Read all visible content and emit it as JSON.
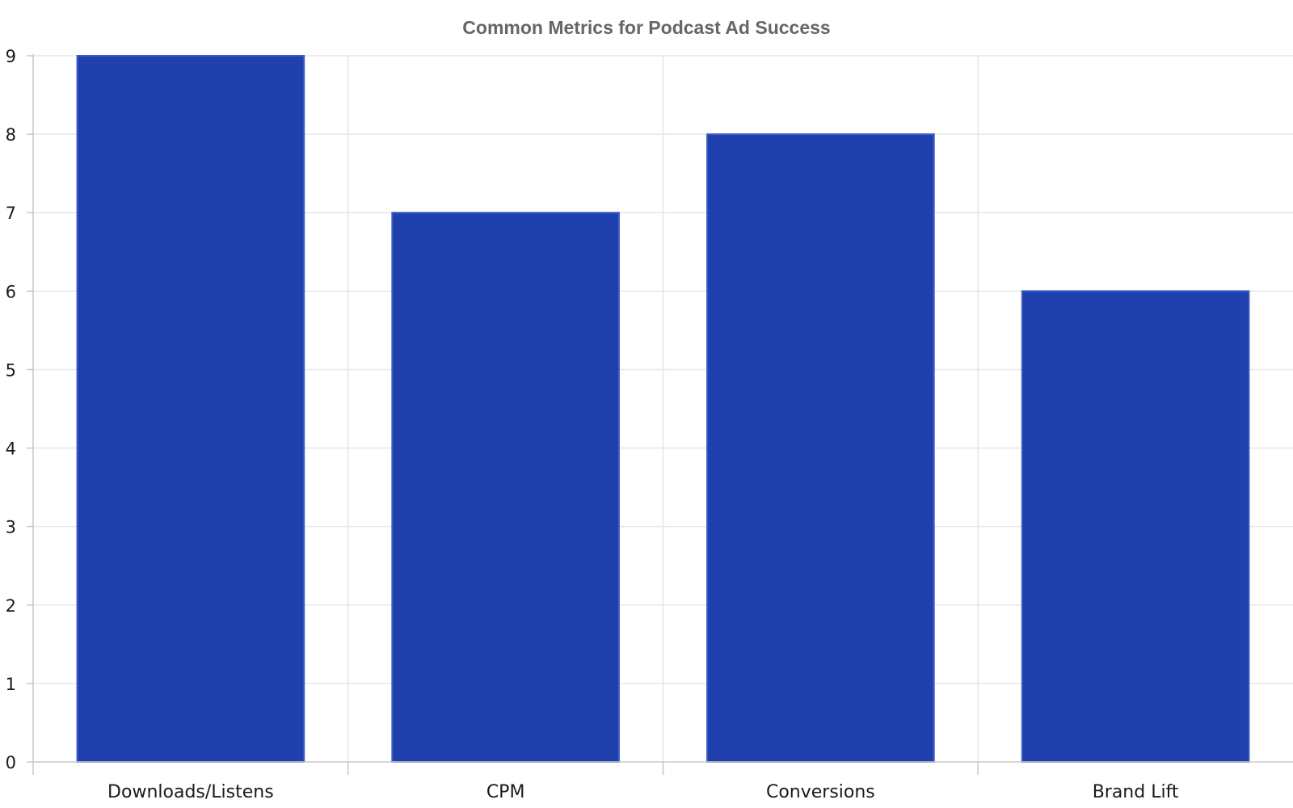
{
  "chart_data": {
    "type": "bar",
    "title": "Common Metrics for Podcast Ad Success",
    "xlabel": "",
    "ylabel": "",
    "categories": [
      "Downloads/Listens",
      "CPM",
      "Conversions",
      "Brand Lift"
    ],
    "values": [
      9,
      7,
      8,
      6
    ],
    "ylim": [
      0,
      9
    ],
    "yticks": [
      "0",
      "1",
      "2",
      "3",
      "4",
      "5",
      "6",
      "7",
      "8",
      "9"
    ],
    "grid": true,
    "legend": "none",
    "colors": {
      "bar_fill": "#1f40ad",
      "bar_edge": "#3a5cc8",
      "grid": "#e6e6e6",
      "axis": "#c8c8c8",
      "title": "#666666",
      "text": "#1a1a1a"
    }
  }
}
